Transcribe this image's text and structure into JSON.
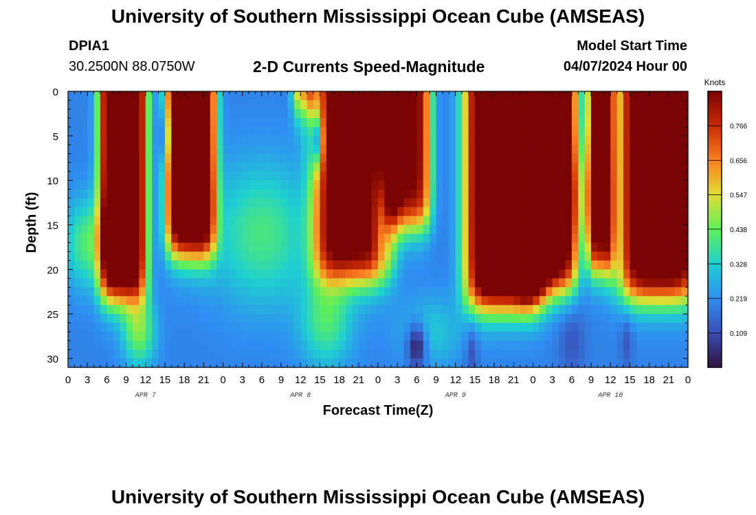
{
  "header": {
    "title": "University of Southern Mississippi Ocean Cube (AMSEAS)",
    "station_id": "DPIA1",
    "coordinates": "30.2500N  88.0750W",
    "plot_title": "2-D Currents Speed-Magnitude",
    "model_start_label": "Model Start Time",
    "model_start_value": "04/07/2024 Hour 00"
  },
  "footer": {
    "title": "University of Southern Mississippi Ocean Cube (AMSEAS)"
  },
  "chart_data": {
    "type": "heatmap",
    "title": "2-D Currents Speed-Magnitude",
    "xlabel": "Forecast Time(Z)",
    "ylabel": "Depth (ft)",
    "x_hours": [
      0,
      96
    ],
    "x_tick_labels": [
      "0",
      "3",
      "6",
      "9",
      "12",
      "15",
      "18",
      "21",
      "0",
      "3",
      "6",
      "9",
      "12",
      "15",
      "18",
      "21",
      "0",
      "3",
      "6",
      "9",
      "12",
      "15",
      "18",
      "21",
      "0",
      "3",
      "6",
      "9",
      "12",
      "15",
      "18",
      "21",
      "0"
    ],
    "date_labels": [
      {
        "label": "APR 7",
        "hour": 12
      },
      {
        "label": "APR 8",
        "hour": 36
      },
      {
        "label": "APR 9",
        "hour": 60
      },
      {
        "label": "APR 10",
        "hour": 84
      }
    ],
    "y_range": [
      0,
      31
    ],
    "y_ticks": [
      0,
      5,
      10,
      15,
      20,
      25,
      30
    ],
    "colorbar": {
      "unit": "Knots",
      "range": [
        0.0,
        0.875
      ],
      "tick_values": [
        0.109,
        0.219,
        0.328,
        0.438,
        0.547,
        0.656,
        0.766
      ],
      "tick_labels": [
        "0.109",
        "0.219",
        "0.328",
        "0.438",
        "0.547",
        "0.656",
        "0.766"
      ]
    },
    "features": [
      {
        "kind": "column",
        "center_hour": 8.5,
        "half_width_hours": 3.2,
        "depth_bottom": 23,
        "peak": 0.9
      },
      {
        "kind": "column",
        "center_hour": 19,
        "half_width_hours": 3.3,
        "depth_bottom": 18,
        "peak": 0.92
      },
      {
        "kind": "column",
        "center_hour": 36.5,
        "half_width_hours": 1.6,
        "depth_bottom": 2,
        "peak": 0.45
      },
      {
        "kind": "column",
        "center_hour": 44,
        "half_width_hours": 5.2,
        "depth_bottom": 21,
        "peak": 0.75
      },
      {
        "kind": "column",
        "center_hour": 52.5,
        "half_width_hours": 3.2,
        "depth_bottom": 15,
        "peak": 0.7
      },
      {
        "kind": "column",
        "center_hour": 67.5,
        "half_width_hours": 5.2,
        "depth_bottom": 24,
        "peak": 0.95
      },
      {
        "kind": "column",
        "center_hour": 74.5,
        "half_width_hours": 3.8,
        "depth_bottom": 22,
        "peak": 0.85
      },
      {
        "kind": "column",
        "center_hour": 82.5,
        "half_width_hours": 1.8,
        "depth_bottom": 20,
        "peak": 0.7
      },
      {
        "kind": "column",
        "center_hour": 91.5,
        "half_width_hours": 5.5,
        "depth_bottom": 23,
        "peak": 0.85
      },
      {
        "kind": "blob",
        "center_hour": 3,
        "center_depth": 17,
        "hour_spread": 3.5,
        "depth_spread": 5,
        "amplitude": 0.22
      },
      {
        "kind": "blob",
        "center_hour": 11,
        "center_depth": 27,
        "hour_spread": 2.5,
        "depth_spread": 4,
        "amplitude": 0.25
      },
      {
        "kind": "blob",
        "center_hour": 30,
        "center_depth": 16,
        "hour_spread": 8,
        "depth_spread": 8,
        "amplitude": 0.2
      },
      {
        "kind": "blob",
        "center_hour": 40,
        "center_depth": 26,
        "hour_spread": 4,
        "depth_spread": 5,
        "amplitude": 0.2
      },
      {
        "kind": "blob",
        "center_hour": 56,
        "center_depth": 27,
        "hour_spread": 5,
        "depth_spread": 4,
        "amplitude": 0.12
      },
      {
        "kind": "blob",
        "center_hour": 80,
        "center_depth": 12,
        "hour_spread": 3,
        "depth_spread": 6,
        "amplitude": 0.15
      },
      {
        "kind": "low",
        "center_hour": 15,
        "center_depth": 5,
        "hour_spread": 1,
        "depth_spread": 3,
        "amplitude": 0.15
      },
      {
        "kind": "low",
        "center_hour": 38.5,
        "center_depth": 5.5,
        "hour_spread": 0.9,
        "depth_spread": 3,
        "amplitude": 0.3
      },
      {
        "kind": "low",
        "center_hour": 48.5,
        "center_depth": 14,
        "hour_spread": 1.2,
        "depth_spread": 5,
        "amplitude": 0.15
      },
      {
        "kind": "low",
        "center_hour": 54,
        "center_depth": 28.5,
        "hour_spread": 1.5,
        "depth_spread": 2.5,
        "amplitude": 0.25
      },
      {
        "kind": "low",
        "center_hour": 62.5,
        "center_depth": 29,
        "hour_spread": 1,
        "depth_spread": 3,
        "amplitude": 0.1
      },
      {
        "kind": "low",
        "center_hour": 71.5,
        "center_depth": 20,
        "hour_spread": 1,
        "depth_spread": 2,
        "amplitude": 0.1
      },
      {
        "kind": "low",
        "center_hour": 78,
        "center_depth": 28,
        "hour_spread": 2,
        "depth_spread": 4,
        "amplitude": 0.08
      },
      {
        "kind": "low",
        "center_hour": 86.5,
        "center_depth": 28,
        "hour_spread": 1,
        "depth_spread": 3,
        "amplitude": 0.08
      }
    ]
  }
}
